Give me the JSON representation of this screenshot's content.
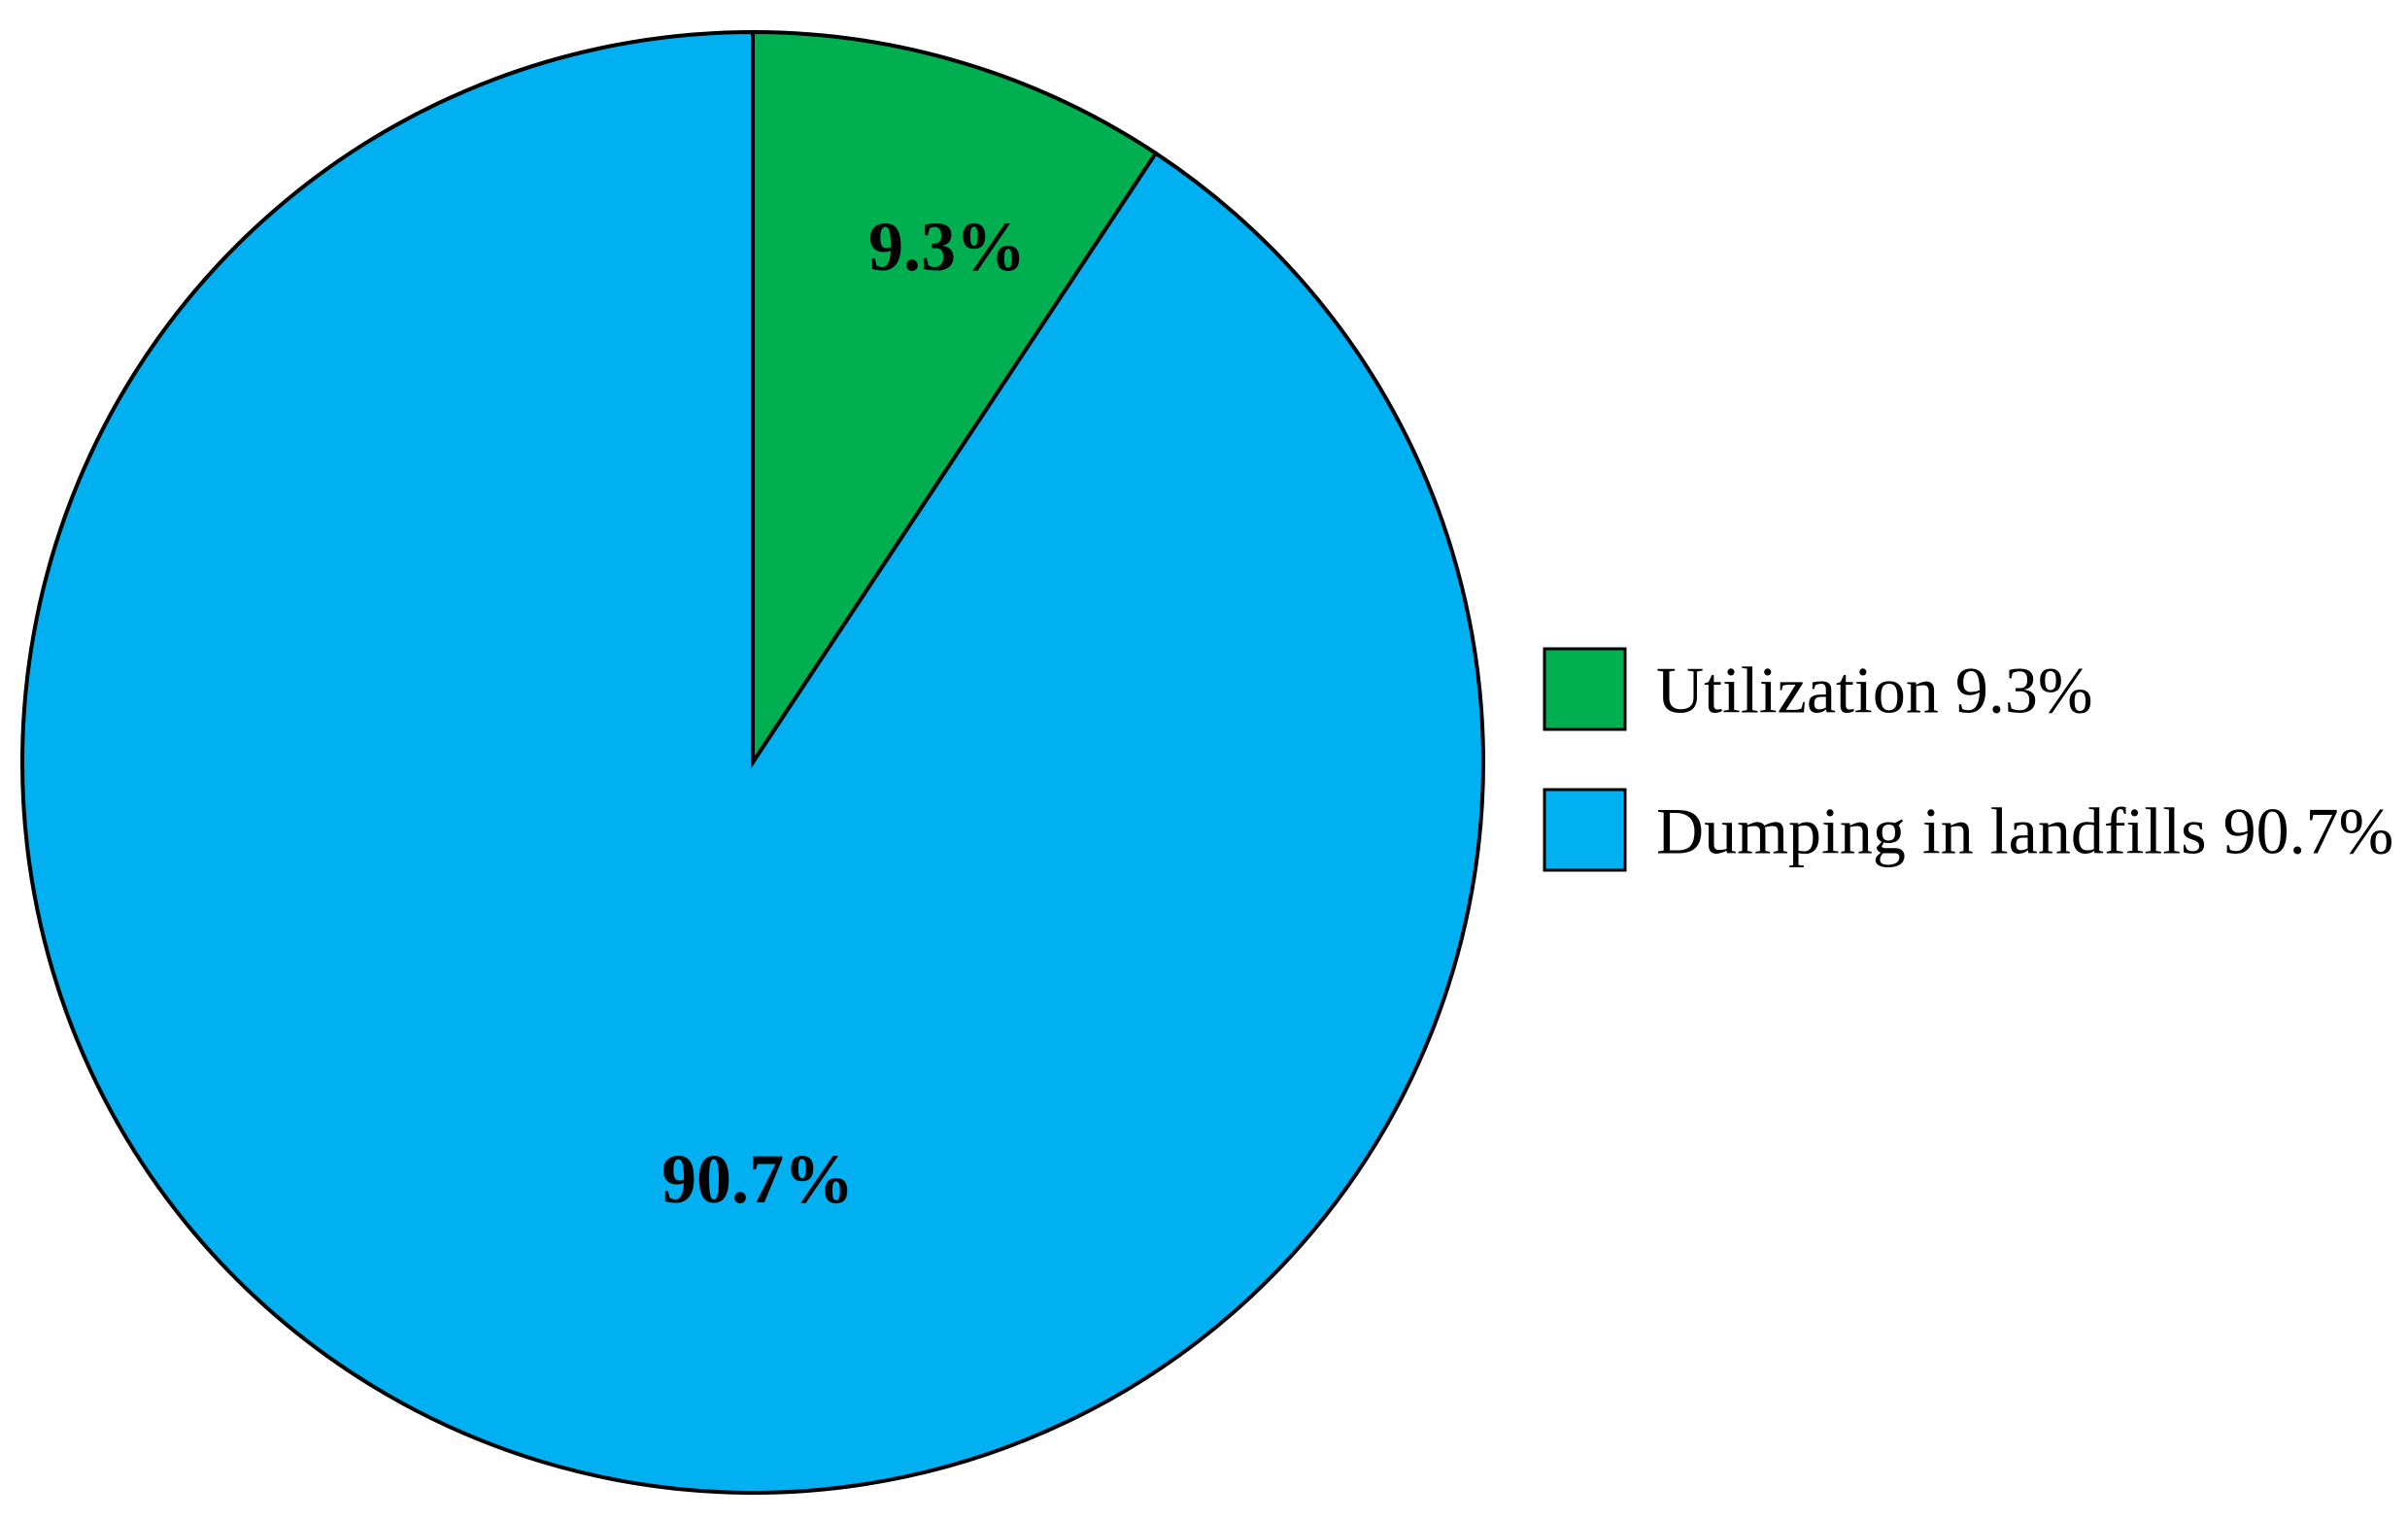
{
  "chart_data": {
    "type": "pie",
    "title": "",
    "start_angle_deg": 0,
    "direction": "clockwise",
    "slices": [
      {
        "label": "Utilization",
        "value": 9.3,
        "data_label": "9.3%",
        "legend_label": "Utilization 9.3%",
        "color": "#00B050"
      },
      {
        "label": "Dumping in landfills",
        "value": 90.7,
        "data_label": "90.7%",
        "legend_label": "Dumping in landfills 90.7%",
        "color": "#00B0F0"
      }
    ],
    "legend_position": "right",
    "outline_color": "#000000"
  }
}
